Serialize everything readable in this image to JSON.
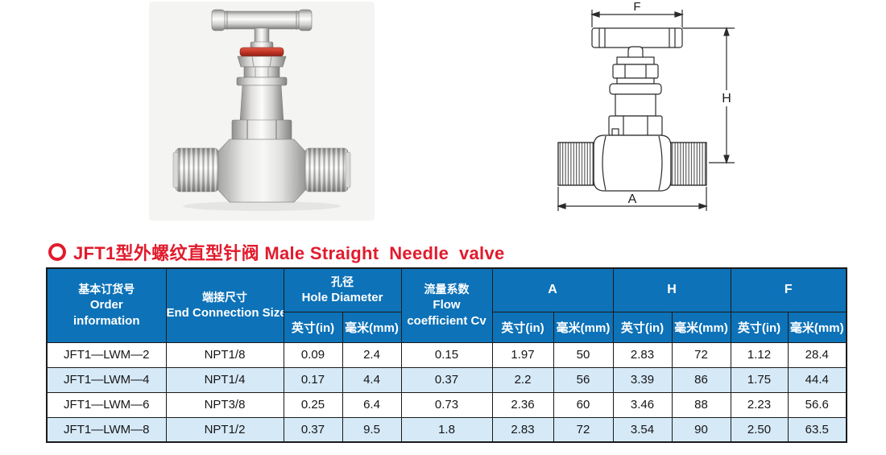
{
  "title": {
    "text": "JFT1型外螺纹直型针阀 Male Straight  Needle  valve"
  },
  "colors": {
    "header_blue": "#0d72b8",
    "row_alt_blue": "#d6e9f7",
    "title_red": "#e11b2d",
    "table_border": "#1a1a1a"
  },
  "diagram": {
    "labels": {
      "f": "F",
      "h": "H",
      "a": "A"
    }
  },
  "table": {
    "headers": {
      "order_zh": "基本订货号",
      "order_en1": "Order",
      "order_en2": "information",
      "end_conn_zh": "端接尺寸",
      "end_conn_en": "End Connection Size",
      "hole_zh": "孔径",
      "hole_en": "Hole Diameter",
      "flow_zh": "流量系数",
      "flow_en1": "Flow",
      "flow_en2": "coefficient Cv",
      "dim_a": "A",
      "dim_h": "H",
      "dim_f": "F",
      "inch": "英寸(in)",
      "mm": "毫米(mm)"
    },
    "rows": [
      [
        "JFT1—LWM—2",
        "NPT1/8",
        "0.09",
        "2.4",
        "0.15",
        "1.97",
        "50",
        "2.83",
        "72",
        "1.12",
        "28.4"
      ],
      [
        "JFT1—LWM—4",
        "NPT1/4",
        "0.17",
        "4.4",
        "0.37",
        "2.2",
        "56",
        "3.39",
        "86",
        "1.75",
        "44.4"
      ],
      [
        "JFT1—LWM—6",
        "NPT3/8",
        "0.25",
        "6.4",
        "0.73",
        "2.36",
        "60",
        "3.46",
        "88",
        "2.23",
        "56.6"
      ],
      [
        "JFT1—LWM—8",
        "NPT1/2",
        "0.37",
        "9.5",
        "1.8",
        "2.83",
        "72",
        "3.54",
        "90",
        "2.50",
        "63.5"
      ]
    ]
  }
}
